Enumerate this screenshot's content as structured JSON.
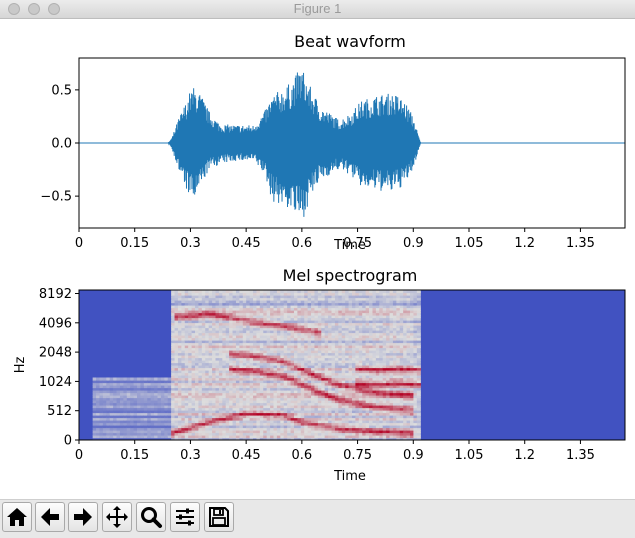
{
  "window": {
    "title": "Figure 1",
    "buttons": [
      {
        "name": "close",
        "color": "#c9c9c9"
      },
      {
        "name": "minimize",
        "color": "#c9c9c9"
      },
      {
        "name": "zoom",
        "color": "#c9c9c9"
      }
    ]
  },
  "colors": {
    "waveform": "#1f77b4",
    "spectrogram_low": "#3b4cc0",
    "spectrogram_high": "#b40426"
  },
  "chart_data": [
    {
      "type": "line",
      "title": "Beat wavform",
      "xlabel": "Time",
      "ylabel": "",
      "xlim": [
        0,
        1.47
      ],
      "ylim": [
        -0.8,
        0.8
      ],
      "xticks": [
        "0",
        "0.15",
        "0.3",
        "0.45",
        "0.6",
        "0.75",
        "0.9",
        "1.05",
        "1.2",
        "1.35"
      ],
      "yticks": [
        "0.5",
        "0.0",
        "−0.5"
      ],
      "envelope": {
        "t": [
          0.0,
          0.24,
          0.25,
          0.27,
          0.29,
          0.3,
          0.31,
          0.33,
          0.35,
          0.38,
          0.42,
          0.47,
          0.5,
          0.52,
          0.55,
          0.57,
          0.59,
          0.6,
          0.62,
          0.65,
          0.7,
          0.73,
          0.76,
          0.8,
          0.84,
          0.86,
          0.88,
          0.9,
          0.91,
          0.92,
          1.47
        ],
        "upper": [
          0.0,
          0.0,
          0.05,
          0.25,
          0.4,
          0.5,
          0.53,
          0.45,
          0.3,
          0.18,
          0.17,
          0.17,
          0.3,
          0.45,
          0.52,
          0.57,
          0.68,
          0.72,
          0.55,
          0.35,
          0.22,
          0.28,
          0.4,
          0.45,
          0.47,
          0.45,
          0.38,
          0.25,
          0.12,
          0.0,
          0.0
        ],
        "lower": [
          0.0,
          0.0,
          -0.05,
          -0.28,
          -0.45,
          -0.52,
          -0.55,
          -0.4,
          -0.25,
          -0.2,
          -0.17,
          -0.17,
          -0.3,
          -0.55,
          -0.6,
          -0.63,
          -0.72,
          -0.75,
          -0.55,
          -0.35,
          -0.25,
          -0.3,
          -0.42,
          -0.45,
          -0.47,
          -0.44,
          -0.38,
          -0.25,
          -0.12,
          0.0,
          0.0
        ]
      }
    },
    {
      "type": "heatmap",
      "title": "Mel spectrogram",
      "xlabel": "Time",
      "ylabel": "Hz",
      "xlim": [
        0,
        1.47
      ],
      "xticks": [
        "0",
        "0.15",
        "0.3",
        "0.45",
        "0.6",
        "0.75",
        "0.9",
        "1.05",
        "1.2",
        "1.35"
      ],
      "yticks": [
        "0",
        "512",
        "1024",
        "2048",
        "4096",
        "8192"
      ],
      "active_time": [
        0.04,
        0.92
      ],
      "loud_time": [
        0.25,
        0.92
      ],
      "harmonic_ridges": [
        {
          "t": [
            0.25,
            0.35,
            0.45,
            0.55,
            0.6,
            0.7,
            0.8,
            0.9
          ],
          "level": [
            0.05,
            0.12,
            0.18,
            0.17,
            0.12,
            0.08,
            0.06,
            0.05
          ]
        },
        {
          "t": [
            0.4,
            0.48,
            0.56,
            0.62,
            0.7,
            0.8,
            0.9
          ],
          "level": [
            0.48,
            0.46,
            0.42,
            0.35,
            0.27,
            0.22,
            0.2
          ]
        },
        {
          "t": [
            0.4,
            0.48,
            0.56,
            0.62,
            0.7,
            0.8,
            0.9
          ],
          "level": [
            0.58,
            0.56,
            0.52,
            0.45,
            0.37,
            0.32,
            0.3
          ]
        },
        {
          "t": [
            0.74,
            0.8,
            0.86,
            0.92
          ],
          "level": [
            0.48,
            0.47,
            0.48,
            0.47
          ]
        },
        {
          "t": [
            0.74,
            0.8,
            0.86,
            0.92
          ],
          "level": [
            0.38,
            0.37,
            0.38,
            0.37
          ]
        },
        {
          "t": [
            0.26,
            0.35,
            0.45,
            0.55,
            0.65
          ],
          "level": [
            0.82,
            0.84,
            0.8,
            0.76,
            0.72
          ]
        }
      ]
    }
  ],
  "toolbar": {
    "buttons": [
      {
        "name": "home-button",
        "icon": "home-icon"
      },
      {
        "name": "back-button",
        "icon": "arrow-left-icon"
      },
      {
        "name": "forward-button",
        "icon": "arrow-right-icon"
      },
      {
        "name": "pan-button",
        "icon": "move-icon"
      },
      {
        "name": "zoom-button",
        "icon": "magnifier-icon"
      },
      {
        "name": "configure-subplots-button",
        "icon": "sliders-icon"
      },
      {
        "name": "save-button",
        "icon": "floppy-icon"
      }
    ],
    "status_text": ""
  }
}
